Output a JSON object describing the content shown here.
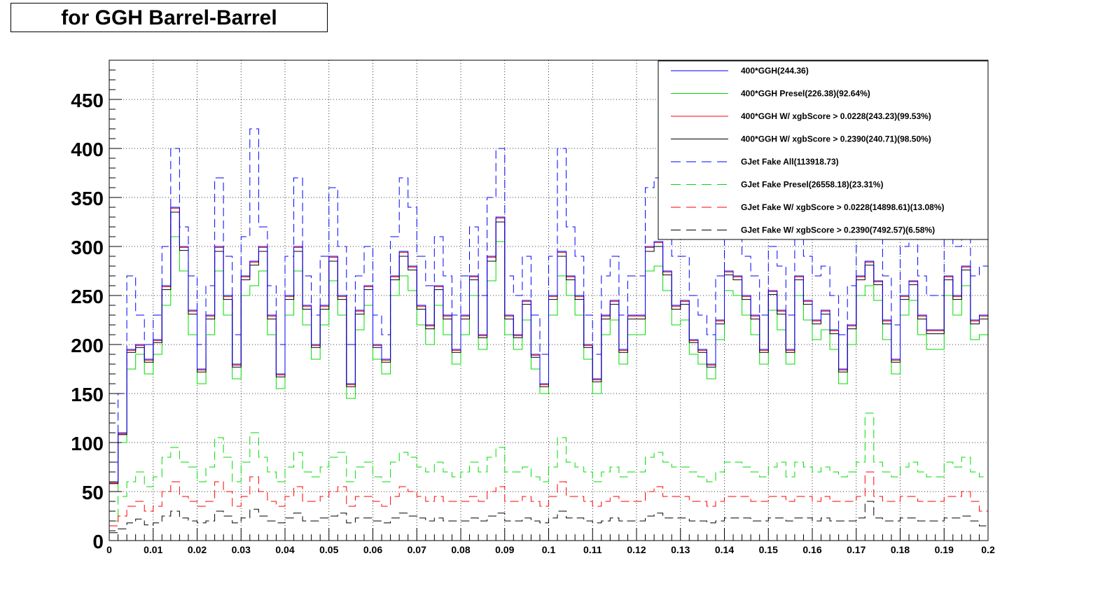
{
  "chart_data": {
    "type": "line",
    "title": "for GGH Barrel-Barrel",
    "xlabel": "",
    "ylabel": "",
    "xlim": [
      0,
      0.2
    ],
    "ylim": [
      0,
      490
    ],
    "x_ticks": [
      "0",
      "0.01",
      "0.02",
      "0.03",
      "0.04",
      "0.05",
      "0.06",
      "0.07",
      "0.08",
      "0.09",
      "0.1",
      "0.11",
      "0.12",
      "0.13",
      "0.14",
      "0.15",
      "0.16",
      "0.17",
      "0.18",
      "0.19",
      "0.2"
    ],
    "y_ticks": [
      "0",
      "50",
      "100",
      "150",
      "200",
      "250",
      "300",
      "350",
      "400",
      "450"
    ],
    "grid": true,
    "legend_position": "top-right",
    "x": [
      0.001,
      0.003,
      0.005,
      0.007,
      0.009,
      0.011,
      0.013,
      0.015,
      0.017,
      0.019,
      0.021,
      0.023,
      0.025,
      0.027,
      0.029,
      0.031,
      0.033,
      0.035,
      0.037,
      0.039,
      0.041,
      0.043,
      0.045,
      0.047,
      0.049,
      0.051,
      0.053,
      0.055,
      0.057,
      0.059,
      0.061,
      0.063,
      0.065,
      0.067,
      0.069,
      0.071,
      0.073,
      0.075,
      0.077,
      0.079,
      0.081,
      0.083,
      0.085,
      0.087,
      0.089,
      0.091,
      0.093,
      0.095,
      0.097,
      0.099,
      0.101,
      0.103,
      0.105,
      0.107,
      0.109,
      0.111,
      0.113,
      0.115,
      0.117,
      0.119,
      0.121,
      0.123,
      0.125,
      0.127,
      0.129,
      0.131,
      0.133,
      0.135,
      0.137,
      0.139,
      0.141,
      0.143,
      0.145,
      0.147,
      0.149,
      0.151,
      0.153,
      0.155,
      0.157,
      0.159,
      0.161,
      0.163,
      0.165,
      0.167,
      0.169,
      0.171,
      0.173,
      0.175,
      0.177,
      0.179,
      0.181,
      0.183,
      0.185,
      0.187,
      0.189,
      0.191,
      0.193,
      0.195,
      0.197,
      0.199
    ],
    "series": [
      {
        "name": "400*GGH(244.36)",
        "color": "#0000ff",
        "dash": "solid",
        "values": [
          60,
          110,
          195,
          200,
          185,
          205,
          260,
          340,
          300,
          235,
          175,
          230,
          300,
          250,
          180,
          270,
          285,
          300,
          230,
          170,
          250,
          300,
          240,
          200,
          240,
          290,
          250,
          160,
          235,
          260,
          200,
          185,
          270,
          295,
          280,
          240,
          220,
          260,
          230,
          195,
          230,
          270,
          210,
          290,
          330,
          230,
          210,
          245,
          190,
          160,
          250,
          295,
          270,
          250,
          200,
          165,
          230,
          245,
          195,
          230,
          230,
          300,
          305,
          275,
          240,
          245,
          205,
          195,
          180,
          225,
          275,
          270,
          250,
          230,
          195,
          255,
          235,
          195,
          270,
          245,
          225,
          235,
          215,
          175,
          220,
          270,
          285,
          265,
          225,
          185,
          250,
          265,
          230,
          215,
          215,
          270,
          250,
          280,
          225,
          230
        ]
      },
      {
        "name": "400*GGH Presel(226.38)(92.64%)",
        "color": "#00dd00",
        "dash": "solid",
        "values": [
          50,
          100,
          175,
          190,
          170,
          190,
          240,
          310,
          275,
          210,
          160,
          210,
          275,
          230,
          165,
          250,
          260,
          275,
          210,
          155,
          230,
          275,
          220,
          185,
          220,
          265,
          230,
          145,
          215,
          240,
          185,
          170,
          250,
          270,
          255,
          220,
          200,
          240,
          210,
          180,
          210,
          250,
          195,
          265,
          305,
          210,
          195,
          225,
          175,
          150,
          230,
          270,
          250,
          230,
          185,
          150,
          210,
          225,
          180,
          210,
          210,
          275,
          280,
          255,
          220,
          225,
          190,
          180,
          165,
          205,
          255,
          250,
          230,
          210,
          180,
          235,
          215,
          180,
          250,
          225,
          205,
          215,
          195,
          160,
          200,
          250,
          260,
          245,
          205,
          170,
          230,
          245,
          210,
          195,
          195,
          250,
          230,
          260,
          205,
          210
        ]
      },
      {
        "name": "400*GGH W/ xgbScore > 0.0228(243.23)(99.53%)",
        "color": "#ff0000",
        "dash": "solid",
        "values": [
          59,
          109,
          194,
          199,
          184,
          204,
          259,
          339,
          299,
          234,
          174,
          229,
          299,
          249,
          179,
          269,
          284,
          299,
          229,
          169,
          249,
          299,
          239,
          199,
          239,
          289,
          249,
          159,
          234,
          259,
          199,
          184,
          269,
          294,
          279,
          239,
          219,
          259,
          229,
          194,
          229,
          269,
          209,
          289,
          329,
          229,
          209,
          244,
          189,
          159,
          249,
          294,
          269,
          249,
          199,
          164,
          229,
          244,
          194,
          229,
          229,
          299,
          304,
          274,
          239,
          244,
          204,
          194,
          179,
          224,
          274,
          269,
          249,
          229,
          194,
          254,
          234,
          194,
          269,
          244,
          224,
          234,
          214,
          174,
          219,
          269,
          284,
          264,
          224,
          184,
          249,
          264,
          229,
          214,
          214,
          269,
          249,
          279,
          224,
          229
        ]
      },
      {
        "name": "400*GGH W/ xgbScore > 0.2390(240.71)(98.50%)",
        "color": "#000000",
        "dash": "solid",
        "values": [
          58,
          108,
          192,
          197,
          182,
          202,
          256,
          335,
          296,
          231,
          172,
          226,
          295,
          246,
          177,
          266,
          281,
          295,
          226,
          167,
          246,
          295,
          236,
          197,
          236,
          285,
          246,
          157,
          231,
          256,
          197,
          182,
          266,
          290,
          276,
          236,
          216,
          256,
          226,
          192,
          226,
          266,
          207,
          285,
          325,
          226,
          207,
          241,
          187,
          157,
          246,
          290,
          266,
          246,
          197,
          162,
          226,
          241,
          192,
          226,
          226,
          295,
          300,
          271,
          236,
          241,
          202,
          192,
          177,
          221,
          271,
          266,
          246,
          226,
          192,
          251,
          231,
          192,
          266,
          241,
          221,
          231,
          211,
          172,
          216,
          266,
          281,
          261,
          221,
          182,
          246,
          261,
          226,
          211,
          211,
          266,
          246,
          276,
          221,
          226
        ]
      },
      {
        "name": "GJet Fake All(113918.73)",
        "color": "#0000ff",
        "dash": "long",
        "values": [
          80,
          150,
          270,
          230,
          200,
          230,
          300,
          400,
          320,
          270,
          200,
          260,
          370,
          290,
          210,
          310,
          420,
          320,
          260,
          200,
          290,
          370,
          270,
          230,
          290,
          360,
          300,
          200,
          270,
          300,
          230,
          210,
          310,
          370,
          340,
          290,
          260,
          310,
          270,
          230,
          270,
          320,
          250,
          350,
          400,
          270,
          250,
          290,
          230,
          190,
          290,
          400,
          320,
          290,
          230,
          190,
          270,
          290,
          230,
          270,
          270,
          360,
          370,
          330,
          290,
          290,
          250,
          230,
          210,
          270,
          330,
          320,
          290,
          270,
          230,
          300,
          280,
          230,
          320,
          290,
          270,
          280,
          250,
          210,
          260,
          320,
          340,
          310,
          270,
          220,
          300,
          320,
          270,
          250,
          250,
          320,
          300,
          330,
          270,
          280
        ]
      },
      {
        "name": "GJet Fake Presel(26558.18)(23.31%)",
        "color": "#00dd00",
        "dash": "long",
        "values": [
          20,
          45,
          60,
          70,
          55,
          65,
          85,
          95,
          80,
          75,
          60,
          75,
          105,
          85,
          60,
          80,
          110,
          85,
          70,
          60,
          75,
          90,
          70,
          65,
          75,
          85,
          90,
          60,
          75,
          80,
          65,
          60,
          80,
          90,
          85,
          75,
          70,
          80,
          70,
          65,
          70,
          80,
          70,
          85,
          95,
          70,
          70,
          75,
          65,
          60,
          75,
          105,
          80,
          75,
          70,
          60,
          70,
          75,
          65,
          70,
          70,
          85,
          90,
          80,
          75,
          75,
          70,
          65,
          60,
          70,
          80,
          80,
          75,
          70,
          65,
          75,
          80,
          65,
          80,
          75,
          70,
          75,
          70,
          65,
          70,
          80,
          130,
          80,
          70,
          65,
          75,
          80,
          70,
          65,
          65,
          80,
          75,
          85,
          70,
          65
        ]
      },
      {
        "name": "GJet Fake W/ xgbScore > 0.0228(14898.61)(13.08%)",
        "color": "#ff0000",
        "dash": "long",
        "values": [
          15,
          25,
          35,
          40,
          30,
          35,
          50,
          60,
          45,
          40,
          35,
          40,
          60,
          50,
          35,
          45,
          65,
          50,
          40,
          35,
          45,
          55,
          40,
          40,
          45,
          50,
          55,
          35,
          45,
          45,
          40,
          35,
          45,
          55,
          50,
          45,
          40,
          45,
          40,
          40,
          40,
          45,
          40,
          50,
          55,
          40,
          40,
          45,
          40,
          35,
          45,
          60,
          45,
          45,
          40,
          35,
          40,
          45,
          40,
          40,
          40,
          50,
          55,
          45,
          45,
          45,
          40,
          40,
          35,
          40,
          45,
          45,
          45,
          40,
          40,
          45,
          45,
          40,
          45,
          45,
          40,
          45,
          40,
          40,
          40,
          45,
          70,
          45,
          40,
          40,
          45,
          45,
          40,
          40,
          40,
          45,
          45,
          50,
          40,
          30
        ]
      },
      {
        "name": "GJet Fake W/ xgbScore > 0.2390(7492.57)(6.58%)",
        "color": "#000000",
        "dash": "long",
        "values": [
          8,
          12,
          18,
          22,
          16,
          18,
          25,
          30,
          23,
          20,
          18,
          20,
          30,
          25,
          18,
          23,
          32,
          25,
          20,
          18,
          23,
          28,
          20,
          20,
          23,
          25,
          28,
          18,
          23,
          23,
          20,
          18,
          23,
          28,
          25,
          23,
          20,
          23,
          20,
          20,
          20,
          23,
          20,
          25,
          28,
          20,
          20,
          23,
          20,
          18,
          23,
          30,
          23,
          23,
          20,
          18,
          20,
          23,
          20,
          20,
          20,
          25,
          28,
          23,
          23,
          23,
          20,
          20,
          18,
          20,
          23,
          23,
          23,
          20,
          20,
          23,
          23,
          20,
          23,
          23,
          20,
          23,
          20,
          20,
          20,
          23,
          40,
          23,
          20,
          20,
          23,
          23,
          20,
          20,
          20,
          23,
          23,
          25,
          20,
          15
        ]
      }
    ]
  }
}
